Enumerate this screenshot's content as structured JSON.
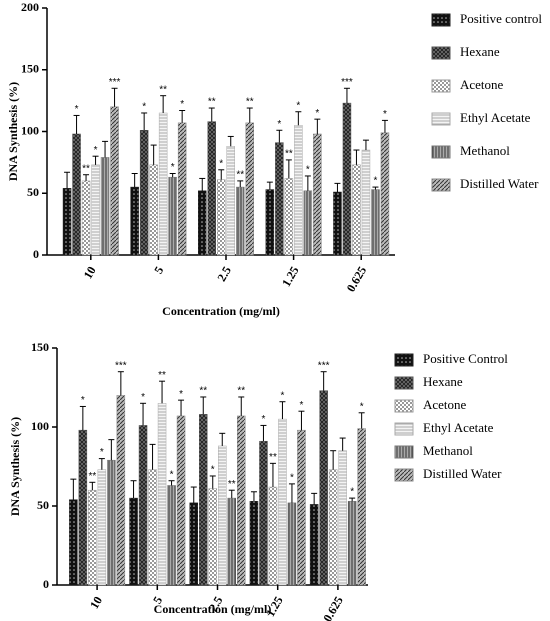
{
  "chart_data": [
    {
      "type": "bar",
      "y_label": "DNA Synthesis (%)",
      "x_label": "Concentration (mg/ml)",
      "categories": [
        "10",
        "5",
        "2.5",
        "1.25",
        "0.625"
      ],
      "ylim": [
        0,
        200
      ],
      "yticks": [
        0,
        50,
        100,
        150,
        200
      ],
      "series": [
        {
          "name": "Positive control",
          "color": "#222222",
          "pattern": "dots",
          "values": [
            54,
            55,
            52,
            53,
            51
          ],
          "errors": [
            13,
            11,
            10,
            6,
            7
          ],
          "stars": [
            null,
            null,
            null,
            null,
            null
          ]
        },
        {
          "name": "Hexane",
          "color": "#555555",
          "pattern": "crosshatch",
          "values": [
            98,
            101,
            108,
            91,
            123
          ],
          "errors": [
            15,
            14,
            11,
            10,
            12
          ],
          "stars": [
            "*",
            "*",
            "**",
            "*",
            "***"
          ]
        },
        {
          "name": "Acetone",
          "color": "#999999",
          "pattern": "checker",
          "values": [
            60,
            73,
            61,
            62,
            73
          ],
          "errors": [
            5,
            16,
            8,
            15,
            12
          ],
          "stars": [
            "**",
            null,
            "*",
            "**",
            null
          ]
        },
        {
          "name": "Ethyl Acetate",
          "color": "#aaaaaa",
          "pattern": "horizontal",
          "values": [
            73,
            115,
            88,
            105,
            85
          ],
          "errors": [
            7,
            14,
            8,
            11,
            8
          ],
          "stars": [
            "*",
            "**",
            null,
            "*",
            null
          ]
        },
        {
          "name": "Methanol",
          "color": "#777777",
          "pattern": "vertical",
          "values": [
            79,
            63,
            55,
            52,
            53
          ],
          "errors": [
            13,
            3,
            5,
            12,
            2
          ],
          "stars": [
            null,
            "*",
            "**",
            "*",
            "*"
          ]
        },
        {
          "name": "Distilled Water",
          "color": "#888888",
          "pattern": "diagonal",
          "values": [
            120,
            107,
            107,
            98,
            99
          ],
          "errors": [
            15,
            10,
            12,
            12,
            10
          ],
          "stars": [
            "***",
            "*",
            "**",
            "*",
            "*"
          ]
        }
      ]
    },
    {
      "type": "bar",
      "y_label": "DNA Synthesis (%)",
      "x_label": "Concentration (mg/ml)",
      "categories": [
        "10",
        "5",
        "2.5",
        "1.25",
        "0.625"
      ],
      "ylim": [
        0,
        150
      ],
      "yticks": [
        0,
        50,
        100,
        150
      ],
      "series": [
        {
          "name": "Positive Control",
          "color": "#222222",
          "pattern": "dots",
          "values": [
            54,
            55,
            52,
            53,
            51
          ],
          "errors": [
            13,
            11,
            10,
            6,
            7
          ],
          "stars": [
            null,
            null,
            null,
            null,
            null
          ]
        },
        {
          "name": "Hexane",
          "color": "#555555",
          "pattern": "crosshatch",
          "values": [
            98,
            101,
            108,
            91,
            123
          ],
          "errors": [
            15,
            14,
            11,
            10,
            12
          ],
          "stars": [
            "*",
            "*",
            "**",
            "*",
            "***"
          ]
        },
        {
          "name": "Acetone",
          "color": "#999999",
          "pattern": "checker",
          "values": [
            60,
            73,
            61,
            62,
            73
          ],
          "errors": [
            5,
            16,
            8,
            15,
            12
          ],
          "stars": [
            "**",
            null,
            "*",
            "**",
            null
          ]
        },
        {
          "name": "Ethyl Acetate",
          "color": "#aaaaaa",
          "pattern": "horizontal",
          "values": [
            73,
            115,
            88,
            105,
            85
          ],
          "errors": [
            7,
            14,
            8,
            11,
            8
          ],
          "stars": [
            "*",
            "**",
            null,
            "*",
            null
          ]
        },
        {
          "name": "Methanol",
          "color": "#777777",
          "pattern": "vertical",
          "values": [
            79,
            63,
            55,
            52,
            53
          ],
          "errors": [
            13,
            3,
            5,
            12,
            2
          ],
          "stars": [
            null,
            "*",
            "**",
            "*",
            "*"
          ]
        },
        {
          "name": "Distilled Water",
          "color": "#888888",
          "pattern": "diagonal",
          "values": [
            120,
            107,
            107,
            98,
            99
          ],
          "errors": [
            15,
            10,
            12,
            12,
            10
          ],
          "stars": [
            "***",
            "*",
            "**",
            "*",
            "*"
          ]
        }
      ]
    }
  ]
}
